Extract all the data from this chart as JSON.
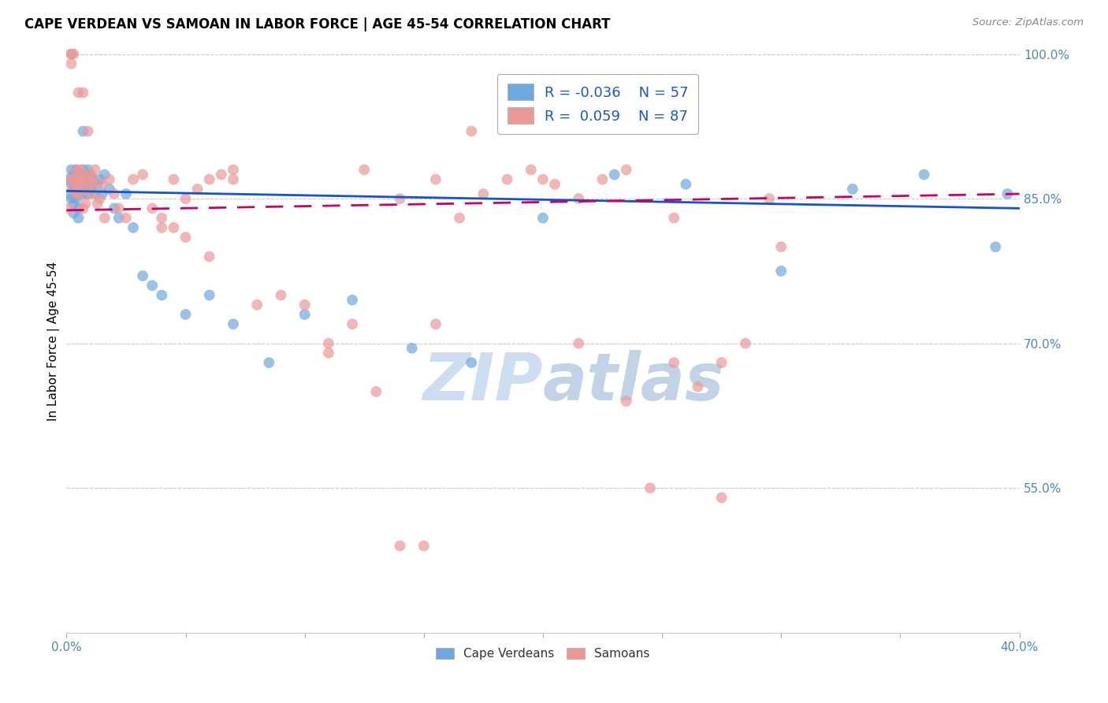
{
  "title": "CAPE VERDEAN VS SAMOAN IN LABOR FORCE | AGE 45-54 CORRELATION CHART",
  "source_text": "Source: ZipAtlas.com",
  "ylabel": "In Labor Force | Age 45-54",
  "x_min": 0.0,
  "x_max": 0.4,
  "y_min": 0.4,
  "y_max": 1.005,
  "x_ticks": [
    0.0,
    0.05,
    0.1,
    0.15,
    0.2,
    0.25,
    0.3,
    0.35,
    0.4
  ],
  "x_ticklabels": [
    "0.0%",
    "",
    "",
    "",
    "",
    "",
    "",
    "",
    "40.0%"
  ],
  "y_ticks": [
    0.4,
    0.55,
    0.7,
    0.85,
    1.0
  ],
  "y_ticklabels": [
    "",
    "55.0%",
    "70.0%",
    "85.0%",
    "100.0%"
  ],
  "blue_color": "#6fa8dc",
  "pink_color": "#ea9999",
  "blue_line_color": "#1155cc",
  "pink_line_color": "#cc0066",
  "legend_R_blue": "-0.036",
  "legend_N_blue": "57",
  "legend_R_pink": "0.059",
  "legend_N_pink": "87",
  "watermark_text": "ZIPatlas",
  "legend_label_blue": "Cape Verdeans",
  "legend_label_pink": "Samoans",
  "blue_scatter_x": [
    0.001,
    0.001,
    0.002,
    0.002,
    0.002,
    0.003,
    0.003,
    0.003,
    0.003,
    0.004,
    0.004,
    0.004,
    0.005,
    0.005,
    0.005,
    0.005,
    0.006,
    0.006,
    0.007,
    0.007,
    0.007,
    0.008,
    0.008,
    0.009,
    0.009,
    0.01,
    0.01,
    0.011,
    0.012,
    0.013,
    0.014,
    0.015,
    0.016,
    0.018,
    0.02,
    0.022,
    0.025,
    0.028,
    0.032,
    0.036,
    0.04,
    0.05,
    0.06,
    0.07,
    0.085,
    0.1,
    0.12,
    0.145,
    0.17,
    0.2,
    0.23,
    0.26,
    0.3,
    0.33,
    0.36,
    0.39,
    0.395
  ],
  "blue_scatter_y": [
    0.87,
    0.855,
    0.88,
    0.865,
    0.85,
    0.875,
    0.86,
    0.845,
    0.835,
    0.88,
    0.865,
    0.85,
    0.87,
    0.855,
    0.84,
    0.83,
    0.875,
    0.86,
    0.92,
    0.88,
    0.855,
    0.87,
    0.865,
    0.88,
    0.855,
    0.875,
    0.86,
    0.87,
    0.855,
    0.865,
    0.87,
    0.855,
    0.875,
    0.86,
    0.84,
    0.83,
    0.855,
    0.82,
    0.77,
    0.76,
    0.75,
    0.73,
    0.75,
    0.72,
    0.68,
    0.73,
    0.745,
    0.695,
    0.68,
    0.83,
    0.875,
    0.865,
    0.775,
    0.86,
    0.875,
    0.8,
    0.855
  ],
  "pink_scatter_x": [
    0.001,
    0.001,
    0.002,
    0.002,
    0.002,
    0.003,
    0.003,
    0.003,
    0.004,
    0.004,
    0.004,
    0.005,
    0.005,
    0.005,
    0.006,
    0.006,
    0.006,
    0.007,
    0.007,
    0.007,
    0.008,
    0.008,
    0.009,
    0.009,
    0.01,
    0.01,
    0.011,
    0.011,
    0.012,
    0.013,
    0.014,
    0.015,
    0.016,
    0.018,
    0.02,
    0.022,
    0.025,
    0.028,
    0.032,
    0.036,
    0.04,
    0.045,
    0.05,
    0.06,
    0.07,
    0.08,
    0.09,
    0.1,
    0.11,
    0.125,
    0.14,
    0.155,
    0.17,
    0.185,
    0.2,
    0.215,
    0.235,
    0.255,
    0.275,
    0.3,
    0.155,
    0.165,
    0.175,
    0.185,
    0.195,
    0.205,
    0.215,
    0.225,
    0.235,
    0.245,
    0.255,
    0.265,
    0.275,
    0.285,
    0.295,
    0.11,
    0.12,
    0.13,
    0.14,
    0.15,
    0.04,
    0.045,
    0.05,
    0.055,
    0.06,
    0.065,
    0.07
  ],
  "pink_scatter_y": [
    0.84,
    0.87,
    1.0,
    1.0,
    0.99,
    1.0,
    0.87,
    0.86,
    0.88,
    0.865,
    0.855,
    0.87,
    0.96,
    0.855,
    0.88,
    0.865,
    0.87,
    0.84,
    0.96,
    0.875,
    0.845,
    0.86,
    0.92,
    0.87,
    0.875,
    0.855,
    0.865,
    0.87,
    0.88,
    0.845,
    0.85,
    0.865,
    0.83,
    0.87,
    0.855,
    0.84,
    0.83,
    0.87,
    0.875,
    0.84,
    0.82,
    0.87,
    0.81,
    0.79,
    0.87,
    0.74,
    0.75,
    0.74,
    0.7,
    0.88,
    0.85,
    0.87,
    0.92,
    0.93,
    0.87,
    0.7,
    0.64,
    0.83,
    0.68,
    0.8,
    0.72,
    0.83,
    0.855,
    0.87,
    0.88,
    0.865,
    0.85,
    0.87,
    0.88,
    0.55,
    0.68,
    0.655,
    0.54,
    0.7,
    0.85,
    0.69,
    0.72,
    0.65,
    0.49,
    0.49,
    0.83,
    0.82,
    0.85,
    0.86,
    0.87,
    0.875,
    0.88
  ]
}
